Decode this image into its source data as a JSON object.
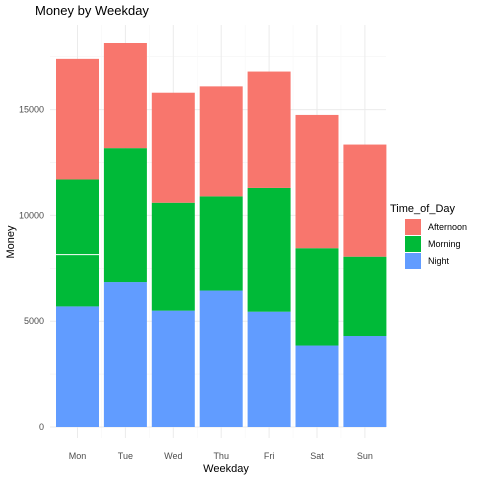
{
  "chart_data": {
    "type": "bar",
    "stacked": true,
    "title": "Money by Weekday",
    "xlabel": "Weekday",
    "ylabel": "Money",
    "categories": [
      "Mon",
      "Tue",
      "Wed",
      "Thu",
      "Fri",
      "Sat",
      "Sun"
    ],
    "ylim": [
      0,
      18200
    ],
    "yticks": [
      0,
      5000,
      10000,
      15000
    ],
    "ytick_labels": [
      "0",
      "5000",
      "10000",
      "15000"
    ],
    "grid": true,
    "legend_title": "Time_of_Day",
    "legend_position": "right",
    "series": [
      {
        "name": "Night",
        "color": "#619CFF",
        "values": [
          5700,
          6850,
          5500,
          6450,
          5450,
          3850,
          4300
        ]
      },
      {
        "name": "Morning",
        "color": "#00BA38",
        "values": [
          6000,
          6330,
          5100,
          4450,
          5850,
          4600,
          3750
        ]
      },
      {
        "name": "Afternoon",
        "color": "#F8766D",
        "values": [
          5700,
          4970,
          5200,
          5200,
          5500,
          6300,
          5300
        ]
      }
    ],
    "legend_order": [
      "Afternoon",
      "Morning",
      "Night"
    ],
    "annotations": [
      {
        "category": "Mon",
        "value": 8150,
        "type": "white-line",
        "description": "thin white divider inside the Morning segment"
      }
    ]
  }
}
